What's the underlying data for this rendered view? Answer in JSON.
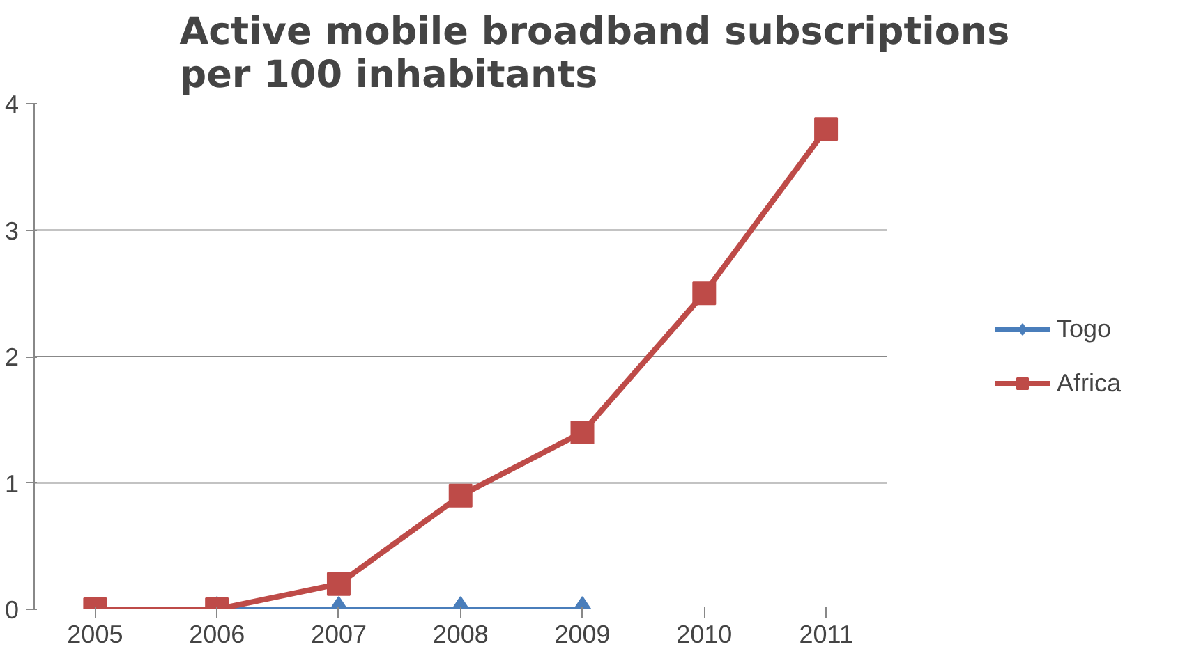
{
  "chart_data": {
    "type": "line",
    "title": "Active mobile broadband subscriptions per 100 inhabitants",
    "categories": [
      "2005",
      "2006",
      "2007",
      "2008",
      "2009",
      "2010",
      "2011"
    ],
    "series": [
      {
        "name": "Togo",
        "color": "#4a7ebb",
        "marker": "diamond",
        "values": [
          null,
          0,
          0,
          0,
          0,
          null,
          null
        ]
      },
      {
        "name": "Africa",
        "color": "#be4b48",
        "marker": "square",
        "values": [
          0,
          0,
          0.2,
          0.9,
          1.4,
          2.5,
          3.8
        ]
      }
    ],
    "ylim": [
      0,
      4
    ],
    "yticks": [
      0,
      1,
      2,
      3,
      4
    ],
    "grid": "y",
    "legend": "right"
  }
}
